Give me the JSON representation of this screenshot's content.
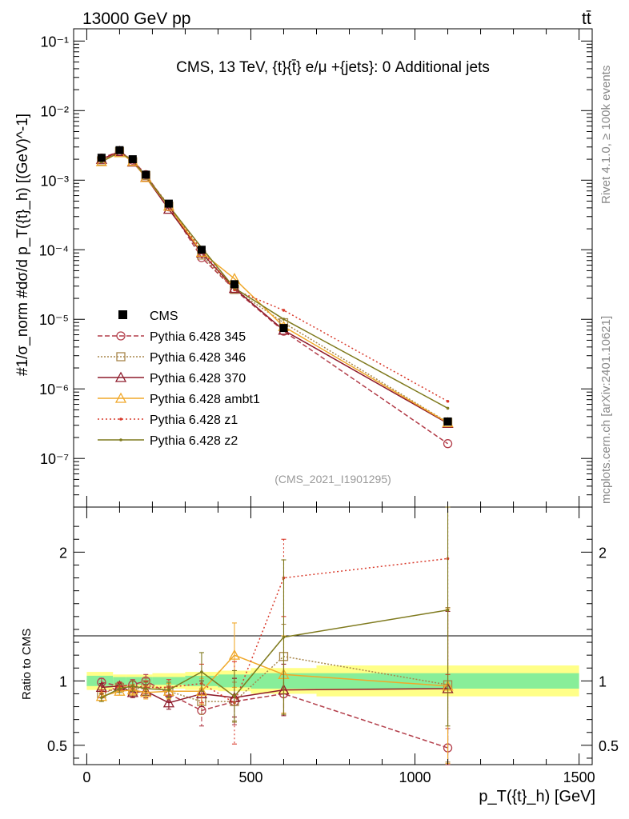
{
  "header": {
    "energy_label": "13000 GeV pp",
    "process_label": "tt̄",
    "rivet_label": "Rivet 4.1.0, ≥ 100k events",
    "site_label": "mcplots.cern.ch [arXiv:2401.10621]"
  },
  "chart_data": {
    "type": "line",
    "title": "CMS, 13 TeV, {t}{t̄} e/μ +{jets}: 0 Additional jets",
    "watermark": "(CMS_2021_I1901295)",
    "xlabel": "p_T({t}_h) [GeV]",
    "ylabel": "#1/σ_norm #dσ/d p_T({t}_h) [(GeV)^-1]",
    "ratio_ylabel": "Ratio to CMS",
    "xlim": [
      -40,
      1540
    ],
    "ylim": [
      2e-08,
      0.15
    ],
    "ratio_ylim": [
      0.35,
      2.35
    ],
    "x_ticks": [
      0,
      500,
      1000,
      1500
    ],
    "x_tick_labels": [
      "0",
      "500",
      "1000",
      "1500"
    ],
    "y_ticks": [
      1e-07,
      1e-06,
      1e-05,
      0.0001,
      0.001,
      0.01,
      0.1
    ],
    "y_tick_labels": [
      "10⁻⁷",
      "10⁻⁶",
      "10⁻⁵",
      "10⁻⁴",
      "10⁻³",
      "10⁻²",
      "10⁻¹"
    ],
    "ratio_ticks": [
      0.5,
      1,
      2
    ],
    "ratio_tick_labels": [
      "0.5",
      "1",
      "2"
    ],
    "x": [
      45,
      100,
      140,
      180,
      250,
      350,
      450,
      600,
      1100
    ],
    "bin_edges": [
      0,
      80,
      120,
      160,
      200,
      300,
      400,
      500,
      700,
      1500
    ],
    "band_inner": [
      0.04,
      0.03,
      0.03,
      0.03,
      0.03,
      0.04,
      0.05,
      0.06,
      0.06
    ],
    "band_outer": [
      0.07,
      0.05,
      0.05,
      0.05,
      0.06,
      0.07,
      0.08,
      0.1,
      0.12
    ],
    "data": {
      "name": "CMS",
      "values": [
        0.0021,
        0.0027,
        0.002,
        0.0012,
        0.00046,
        0.0001,
        3.2e-05,
        7.5e-06,
        3.4e-07
      ]
    },
    "series": [
      {
        "name": "Pythia 6.428 345",
        "color": "#b33e4a",
        "dash": "6,3",
        "marker": "circle",
        "ratio": [
          0.99,
          0.96,
          0.97,
          1.0,
          0.9,
          0.77,
          0.84,
          0.9,
          0.48
        ],
        "ratio_err": [
          0.03,
          0.03,
          0.04,
          0.05,
          0.06,
          0.12,
          0.18,
          0.15,
          0.15
        ]
      },
      {
        "name": "Pythia 6.428 346",
        "color": "#a8864a",
        "dash": "2,2",
        "marker": "square",
        "ratio": [
          0.9,
          0.95,
          0.92,
          0.97,
          0.92,
          0.84,
          0.84,
          1.19,
          0.97
        ],
        "ratio_err": [
          0.03,
          0.03,
          0.04,
          0.05,
          0.06,
          0.1,
          0.15,
          0.25,
          0.6
        ]
      },
      {
        "name": "Pythia 6.428 370",
        "color": "#8e1c2c",
        "dash": "",
        "marker": "triangle",
        "ratio": [
          0.95,
          0.96,
          0.91,
          0.92,
          0.83,
          0.9,
          0.87,
          0.93,
          0.94
        ],
        "ratio_err": [
          0.03,
          0.03,
          0.04,
          0.05,
          0.05,
          0.1,
          0.15,
          0.2,
          0.6
        ]
      },
      {
        "name": "Pythia 6.428 ambt1",
        "color": "#f0a82a",
        "dash": "",
        "marker": "triangle",
        "ratio": [
          0.88,
          0.92,
          0.93,
          0.91,
          0.92,
          0.92,
          1.2,
          1.05,
          0.96
        ],
        "ratio_err": [
          0.03,
          0.03,
          0.04,
          0.05,
          0.06,
          0.1,
          0.25,
          0.3,
          0.6
        ]
      },
      {
        "name": "Pythia 6.428 z1",
        "color": "#d93a2b",
        "dash": "2,3",
        "marker": "dot",
        "ratio": [
          0.9,
          0.96,
          0.96,
          0.95,
          0.95,
          0.98,
          0.83,
          1.8,
          1.95
        ],
        "ratio_err": [
          0.03,
          0.03,
          0.04,
          0.05,
          0.06,
          0.15,
          0.32,
          0.3,
          0.9
        ]
      },
      {
        "name": "Pythia 6.428 z2",
        "color": "#7f7a1e",
        "dash": "",
        "marker": "dot",
        "ratio": [
          0.87,
          0.94,
          0.96,
          0.94,
          0.93,
          1.07,
          0.88,
          1.34,
          1.55
        ],
        "ratio_err": [
          0.03,
          0.03,
          0.04,
          0.05,
          0.06,
          0.15,
          0.2,
          0.6,
          0.9
        ]
      }
    ]
  }
}
